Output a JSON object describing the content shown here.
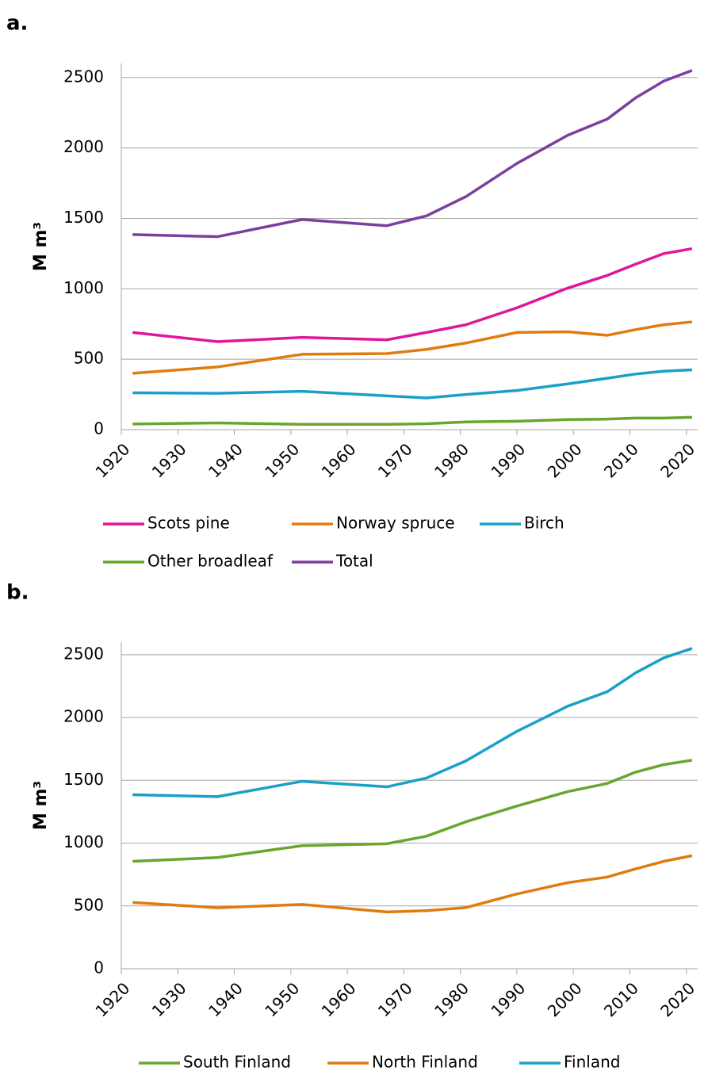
{
  "chart_data": [
    {
      "type": "line",
      "panel": "a.",
      "ylabel": "M m³",
      "x": [
        1922,
        1937,
        1952,
        1967,
        1974,
        1981,
        1990,
        1999,
        2006,
        2011,
        2016,
        2021
      ],
      "xlim": [
        1920,
        2022
      ],
      "xticks": [
        1920,
        1930,
        1940,
        1950,
        1960,
        1970,
        1980,
        1990,
        2000,
        2010,
        2020
      ],
      "ylim": [
        0,
        2600
      ],
      "yticks": [
        0,
        500,
        1000,
        1500,
        2000,
        2500
      ],
      "grid": true,
      "series": [
        {
          "name": "Scots pine",
          "color": "#e0179a",
          "values": [
            690,
            625,
            655,
            638,
            690,
            745,
            865,
            1005,
            1095,
            1175,
            1250,
            1285
          ]
        },
        {
          "name": "Norway spruce",
          "color": "#e07b10",
          "values": [
            400,
            445,
            535,
            540,
            570,
            615,
            690,
            695,
            670,
            710,
            745,
            765
          ]
        },
        {
          "name": "Birch",
          "color": "#1aa0c8",
          "values": [
            262,
            258,
            272,
            240,
            225,
            250,
            278,
            325,
            365,
            395,
            415,
            425
          ]
        },
        {
          "name": "Other broadleaf",
          "color": "#6aa52e",
          "values": [
            40,
            48,
            38,
            38,
            42,
            55,
            60,
            72,
            75,
            82,
            82,
            88
          ]
        },
        {
          "name": "Total",
          "color": "#7b3f9e",
          "values": [
            1385,
            1370,
            1492,
            1448,
            1518,
            1655,
            1890,
            2090,
            2205,
            2355,
            2475,
            2550
          ]
        }
      ]
    },
    {
      "type": "line",
      "panel": "b.",
      "ylabel": "M m³",
      "x": [
        1922,
        1937,
        1952,
        1967,
        1974,
        1981,
        1990,
        1999,
        2006,
        2011,
        2016,
        2021
      ],
      "xlim": [
        1920,
        2022
      ],
      "xticks": [
        1920,
        1930,
        1940,
        1950,
        1960,
        1970,
        1980,
        1990,
        2000,
        2010,
        2020
      ],
      "ylim": [
        0,
        2600
      ],
      "yticks": [
        0,
        500,
        1000,
        1500,
        2000,
        2500
      ],
      "grid": true,
      "series": [
        {
          "name": "South Finland",
          "color": "#6aa52e",
          "values": [
            855,
            885,
            980,
            995,
            1055,
            1170,
            1295,
            1410,
            1475,
            1565,
            1625,
            1660
          ]
        },
        {
          "name": "North Finland",
          "color": "#e07b10",
          "values": [
            528,
            485,
            512,
            452,
            462,
            487,
            595,
            685,
            730,
            795,
            855,
            900
          ]
        },
        {
          "name": "Finland",
          "color": "#1aa0c8",
          "values": [
            1385,
            1370,
            1492,
            1448,
            1518,
            1655,
            1890,
            2090,
            2205,
            2355,
            2475,
            2550
          ]
        }
      ]
    }
  ]
}
